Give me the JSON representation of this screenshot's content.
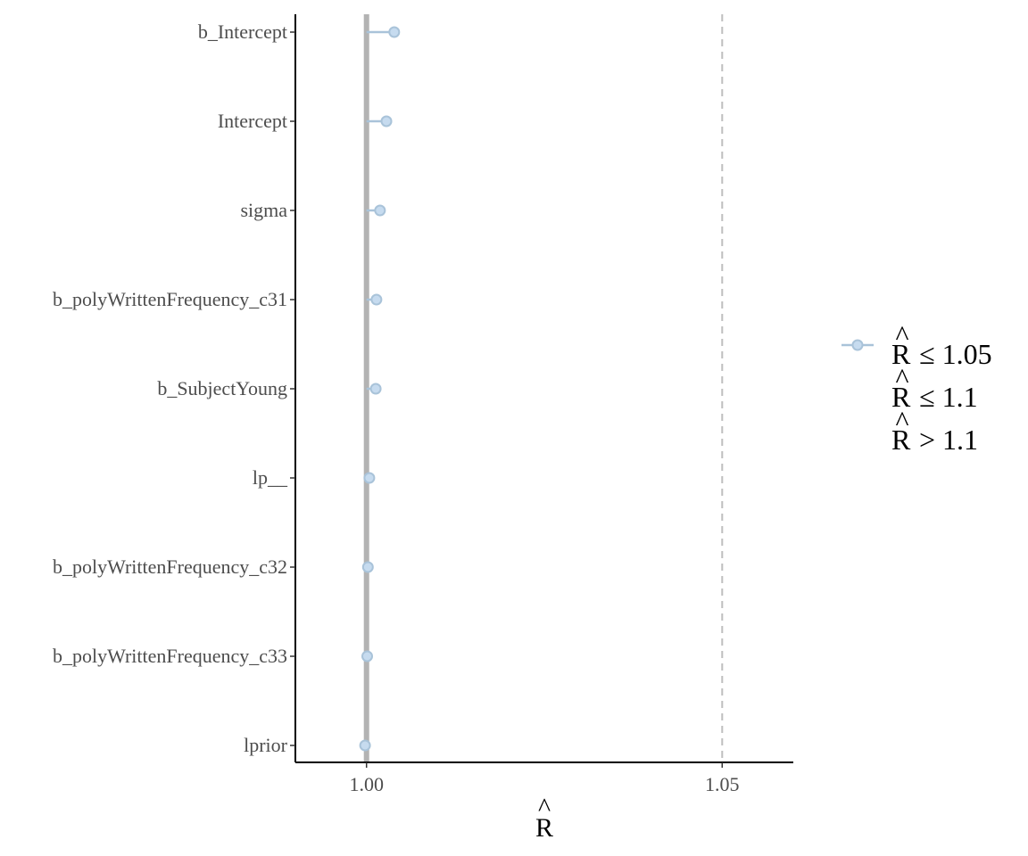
{
  "chart_data": {
    "type": "dot",
    "title": "",
    "xlabel": "R",
    "ylabel": "",
    "xlim": [
      0.99,
      1.06
    ],
    "x_ticks": [
      1.0,
      1.05
    ],
    "x_tick_labels": [
      "1.00",
      "1.05"
    ],
    "reference_line": 1.0,
    "threshold_line": 1.05,
    "grid": false,
    "legend_position": "right",
    "categories": [
      "b_Intercept",
      "Intercept",
      "sigma",
      "b_polyWrittenFrequency_c31",
      "b_SubjectYoung",
      "lp__",
      "b_polyWrittenFrequency_c32",
      "b_polyWrittenFrequency_c33",
      "lprior"
    ],
    "values": [
      1.0039,
      1.0028,
      1.0019,
      1.0014,
      1.0013,
      1.0004,
      1.0002,
      1.0001,
      0.9998
    ],
    "legend": [
      {
        "symbol": "R",
        "relation": "≤ 1.05"
      },
      {
        "symbol": "R",
        "relation": "≤ 1.1"
      },
      {
        "symbol": "R",
        "relation": "> 1.1"
      }
    ],
    "colors": {
      "point_fill": "#c6dbef",
      "point_stroke": "#a9c3d9",
      "segment": "#a9c3d9",
      "reference": "#b3b3b3",
      "threshold": "#bfbfbf",
      "axis": "#000000"
    }
  }
}
